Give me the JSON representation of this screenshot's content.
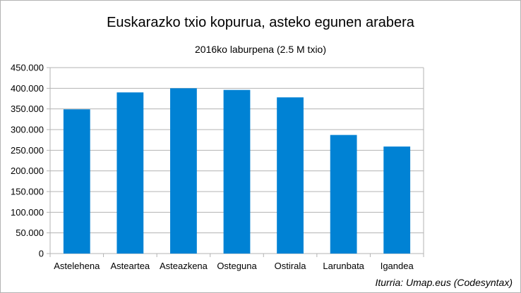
{
  "chart_data": {
    "type": "bar",
    "title": "Euskarazko txio kopurua, asteko egunen arabera",
    "subtitle": "2016ko laburpena (2.5 M txio)",
    "categories": [
      "Astelehena",
      "Astearteа",
      "Asteazkena",
      "Osteguna",
      "Ostirala",
      "Larunbata",
      "Igandea"
    ],
    "values": [
      349000,
      390000,
      400000,
      396000,
      378000,
      287000,
      259000
    ],
    "ylim": [
      0,
      450000
    ],
    "yticks": [
      0,
      50000,
      100000,
      150000,
      200000,
      250000,
      300000,
      350000,
      400000,
      450000
    ],
    "ytick_labels": [
      "0",
      "50.000",
      "100.000",
      "150.000",
      "200.000",
      "250.000",
      "300.000",
      "350.000",
      "400.000",
      "450.000"
    ],
    "xlabel": "",
    "ylabel": "",
    "grid": true,
    "legend": "none",
    "bar_color": "#0082d4",
    "grid_color": "#b3b3b3",
    "source": "Iturria: Umap.eus (Codesyntax)"
  }
}
